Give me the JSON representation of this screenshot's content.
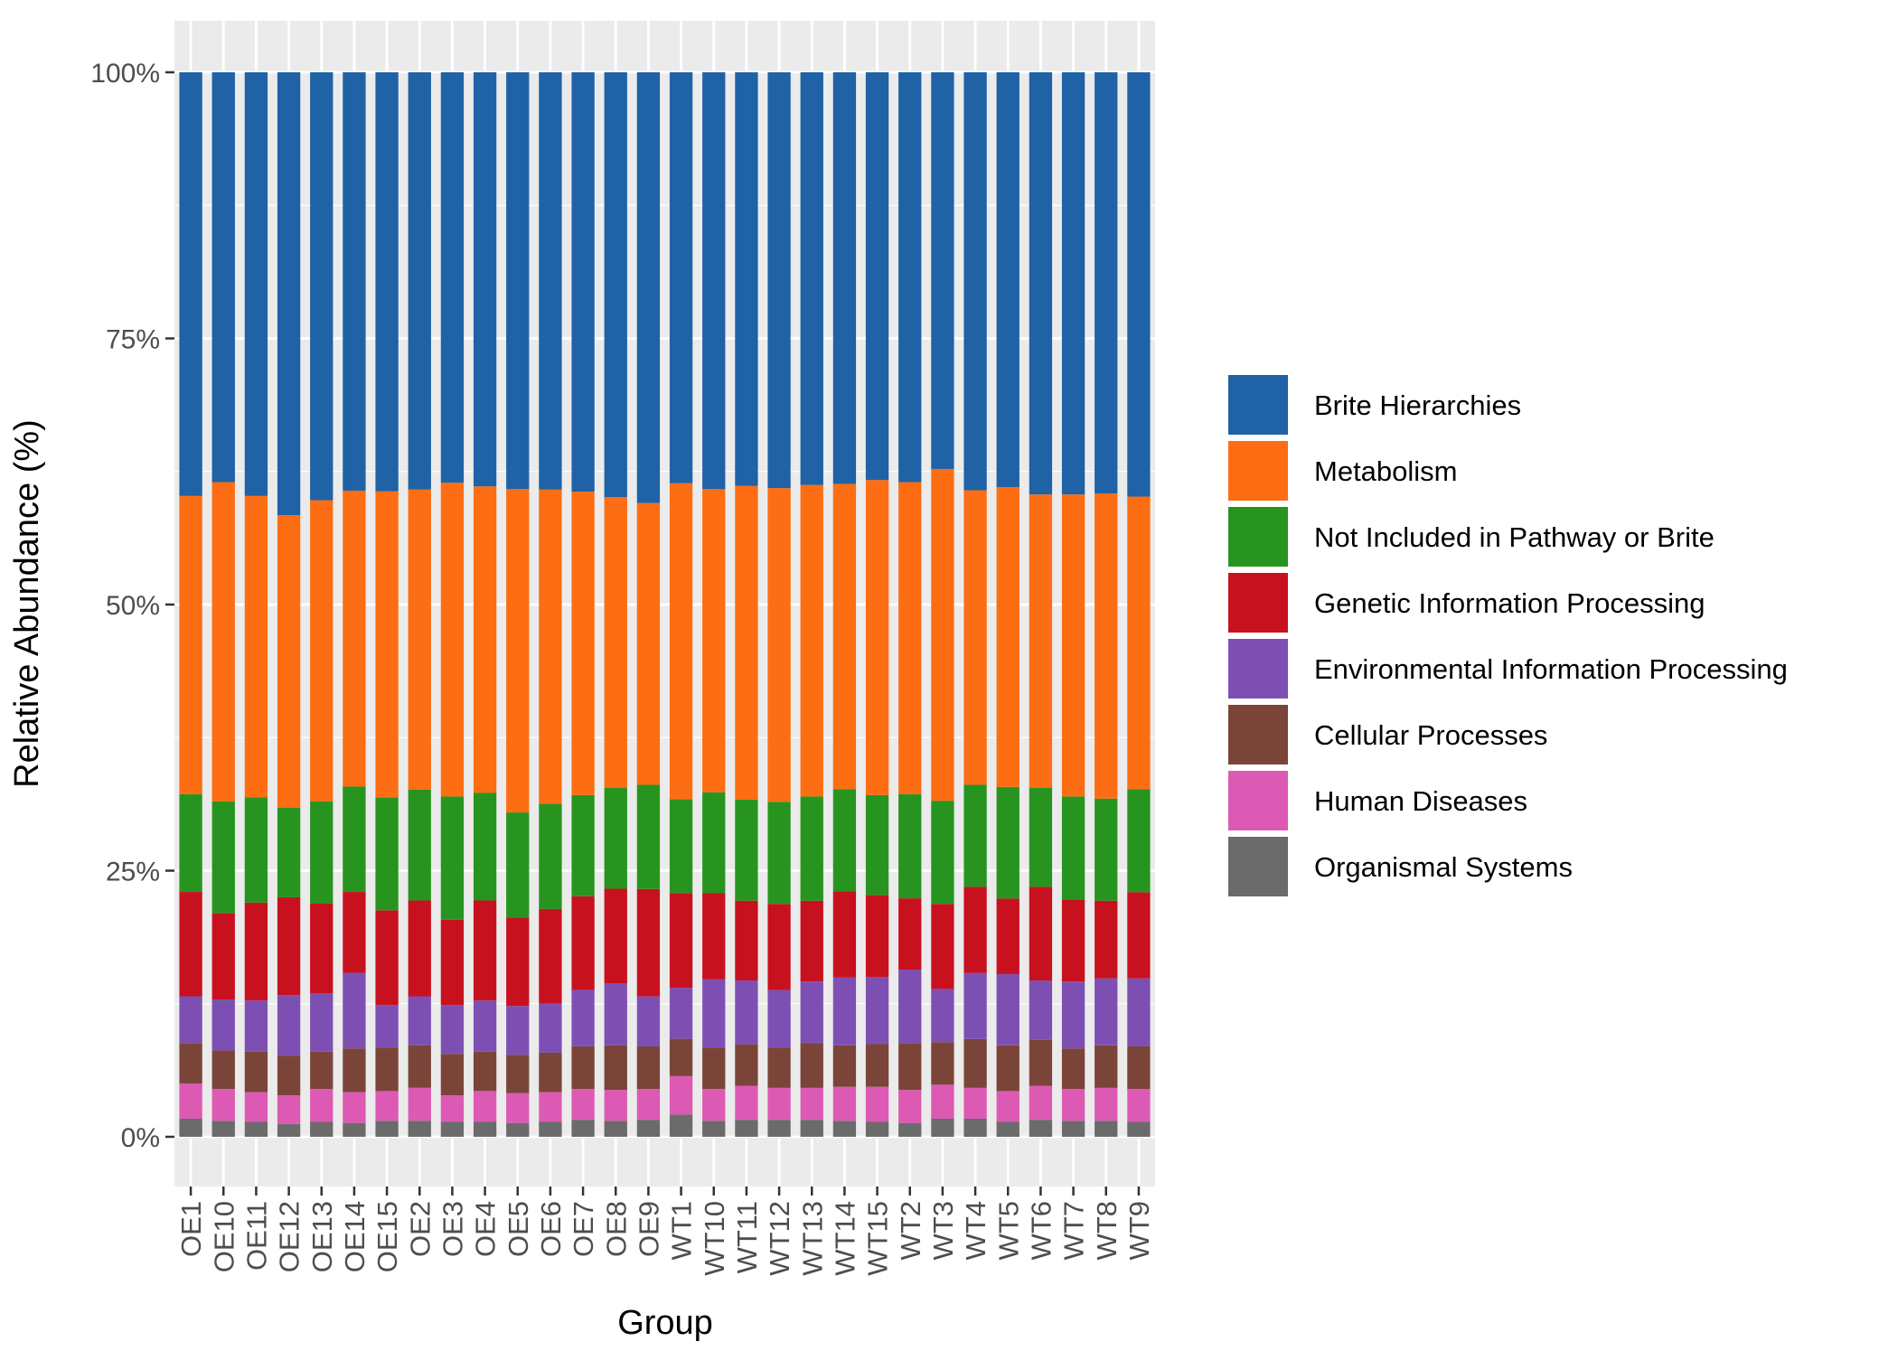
{
  "chart_data": {
    "type": "bar",
    "stacked": true,
    "normalized": true,
    "title": "",
    "xlabel": "Group",
    "ylabel": "Relative Abundance (%)",
    "ylim": [
      0,
      100
    ],
    "y_ticks": [
      0,
      25,
      50,
      75,
      100
    ],
    "y_tick_labels": [
      "0%",
      "25%",
      "50%",
      "75%",
      "100%"
    ],
    "legend_position": "right",
    "categories": [
      "OE1",
      "OE10",
      "OE11",
      "OE12",
      "OE13",
      "OE14",
      "OE15",
      "OE2",
      "OE3",
      "OE4",
      "OE5",
      "OE6",
      "OE7",
      "OE8",
      "OE9",
      "WT1",
      "WT10",
      "WT11",
      "WT12",
      "WT13",
      "WT14",
      "WT15",
      "WT2",
      "WT3",
      "WT4",
      "WT5",
      "WT6",
      "WT7",
      "WT8",
      "WT9"
    ],
    "series": [
      {
        "name": "Organismal Systems",
        "color": "#6b6b6b",
        "values": [
          1.7,
          1.5,
          1.4,
          1.2,
          1.4,
          1.3,
          1.5,
          1.5,
          1.4,
          1.4,
          1.3,
          1.4,
          1.6,
          1.5,
          1.6,
          2.1,
          1.5,
          1.6,
          1.6,
          1.6,
          1.5,
          1.4,
          1.3,
          1.7,
          1.7,
          1.4,
          1.6,
          1.5,
          1.5,
          1.4
        ]
      },
      {
        "name": "Human Diseases",
        "color": "#dc5ab4",
        "values": [
          3.3,
          3.0,
          2.8,
          2.7,
          3.1,
          2.9,
          2.8,
          3.1,
          2.5,
          2.9,
          2.8,
          2.8,
          2.9,
          2.9,
          2.9,
          3.6,
          3.0,
          3.2,
          3.0,
          3.0,
          3.2,
          3.3,
          3.1,
          3.2,
          2.9,
          2.9,
          3.2,
          3.0,
          3.1,
          3.1
        ]
      },
      {
        "name": "Cellular Processes",
        "color": "#7a4538",
        "values": [
          3.8,
          3.6,
          3.8,
          3.7,
          3.5,
          4.1,
          4.1,
          4.0,
          3.9,
          3.7,
          3.6,
          3.7,
          4.0,
          4.2,
          4.0,
          3.5,
          3.9,
          3.9,
          3.8,
          4.2,
          3.9,
          4.0,
          4.4,
          4.0,
          4.6,
          4.3,
          4.3,
          3.8,
          4.0,
          4.0
        ]
      },
      {
        "name": "Environmental Information Processing",
        "color": "#7e4fb3",
        "values": [
          4.4,
          4.8,
          4.8,
          5.7,
          5.5,
          7.1,
          4.0,
          4.6,
          4.6,
          4.8,
          4.6,
          4.6,
          5.3,
          5.8,
          4.7,
          4.8,
          6.4,
          6.0,
          5.4,
          5.8,
          6.4,
          6.3,
          6.9,
          5.0,
          6.2,
          6.7,
          5.6,
          6.3,
          6.3,
          6.4
        ]
      },
      {
        "name": "Genetic Information Processing",
        "color": "#c8111f",
        "values": [
          9.8,
          8.1,
          9.2,
          9.2,
          8.4,
          7.6,
          8.9,
          9.0,
          8.0,
          9.4,
          8.3,
          8.9,
          8.8,
          8.9,
          10.1,
          8.9,
          8.1,
          7.5,
          8.1,
          7.6,
          8.1,
          7.7,
          6.7,
          8.0,
          8.1,
          7.1,
          8.8,
          7.7,
          7.3,
          8.1
        ]
      },
      {
        "name": "Not Included in Pathway or Brite",
        "color": "#289420",
        "values": [
          9.2,
          10.5,
          9.9,
          8.4,
          9.6,
          9.9,
          10.6,
          10.4,
          11.6,
          10.1,
          9.9,
          9.9,
          9.5,
          9.5,
          9.8,
          8.8,
          9.5,
          9.5,
          9.6,
          9.8,
          9.6,
          9.4,
          9.8,
          9.7,
          9.6,
          10.5,
          9.3,
          9.7,
          9.6,
          9.7
        ]
      },
      {
        "name": "Metabolism",
        "color": "#fd6d13",
        "values": [
          28.0,
          30.0,
          28.3,
          27.5,
          28.3,
          27.8,
          28.8,
          28.2,
          29.5,
          28.8,
          30.4,
          29.5,
          28.5,
          27.3,
          26.5,
          29.7,
          28.5,
          29.5,
          29.5,
          29.3,
          28.7,
          29.6,
          29.3,
          31.2,
          27.7,
          28.2,
          27.6,
          28.4,
          28.7,
          27.5
        ]
      },
      {
        "name": "Brite Hierarchies",
        "color": "#1f62a6",
        "values": [
          39.8,
          38.5,
          39.8,
          41.6,
          40.2,
          39.3,
          39.4,
          39.2,
          38.6,
          38.9,
          39.2,
          39.2,
          39.4,
          39.9,
          40.5,
          38.6,
          39.2,
          38.9,
          39.1,
          38.8,
          38.7,
          38.3,
          38.5,
          37.3,
          39.3,
          39.0,
          39.7,
          39.7,
          39.6,
          39.9
        ]
      }
    ],
    "legend_order": [
      "Brite Hierarchies",
      "Metabolism",
      "Not Included in Pathway or Brite",
      "Genetic Information Processing",
      "Environmental Information Processing",
      "Cellular Processes",
      "Human Diseases",
      "Organismal Systems"
    ]
  },
  "colors": {
    "panel_background": "#ebebeb",
    "grid_major": "#ffffff",
    "tick_text": "#4d4d4d",
    "axis_title": "#000000"
  }
}
